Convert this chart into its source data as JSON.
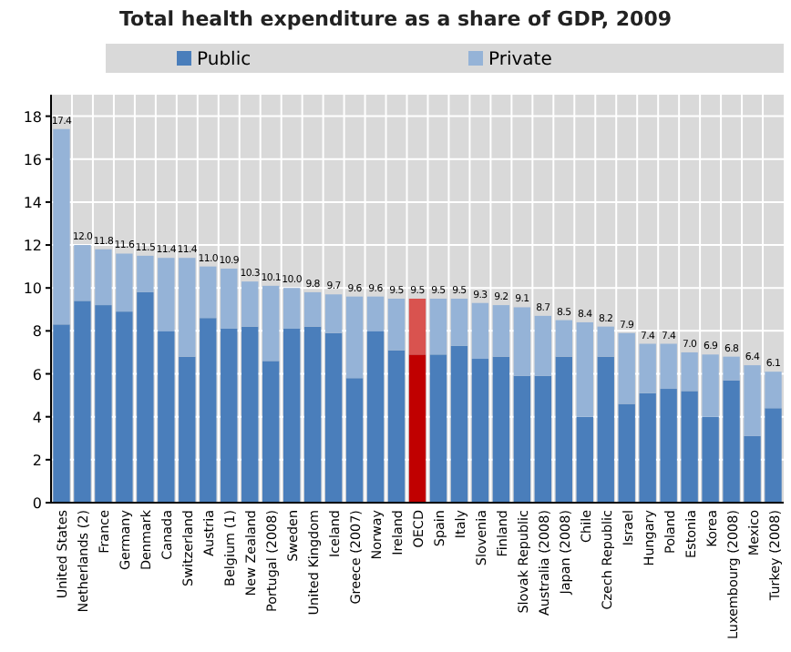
{
  "chart_data": {
    "type": "bar",
    "title": "Total health expenditure as a share of GDP, 2009",
    "categories": [
      "United States",
      "Netherlands (2)",
      "France",
      "Germany",
      "Denmark",
      "Canada",
      "Switzerland",
      "Austria",
      "Belgium (1)",
      "New Zealand",
      "Portugal (2008)",
      "Sweden",
      "United Kingdom",
      "Iceland",
      "Greece (2007)",
      "Norway",
      "Ireland",
      "OECD",
      "Spain",
      "Italy",
      "Slovenia",
      "Finland",
      "Slovak Republic",
      "Australia (2008)",
      "Japan (2008)",
      "Chile",
      "Czech Republic",
      "Israel",
      "Hungary",
      "Poland",
      "Estonia",
      "Korea",
      "Luxembourg (2008)",
      "Mexico",
      "Turkey (2008)"
    ],
    "stacked": true,
    "series": [
      {
        "name": "Public",
        "color": "#4a7ebb",
        "colors": [
          "#4a7ebb",
          "#4a7ebb",
          "#4a7ebb",
          "#4a7ebb",
          "#4a7ebb",
          "#4a7ebb",
          "#4a7ebb",
          "#4a7ebb",
          "#4a7ebb",
          "#4a7ebb",
          "#4a7ebb",
          "#4a7ebb",
          "#4a7ebb",
          "#4a7ebb",
          "#4a7ebb",
          "#4a7ebb",
          "#4a7ebb",
          "#c00000",
          "#4a7ebb",
          "#4a7ebb",
          "#4a7ebb",
          "#4a7ebb",
          "#4a7ebb",
          "#4a7ebb",
          "#4a7ebb",
          "#4a7ebb",
          "#4a7ebb",
          "#4a7ebb",
          "#4a7ebb",
          "#4a7ebb",
          "#4a7ebb",
          "#4a7ebb",
          "#4a7ebb",
          "#4a7ebb",
          "#4a7ebb"
        ],
        "values": [
          8.3,
          9.4,
          9.2,
          8.9,
          9.8,
          8.0,
          6.8,
          8.6,
          8.1,
          8.2,
          6.6,
          8.1,
          8.2,
          7.9,
          5.8,
          8.0,
          7.1,
          6.9,
          6.9,
          7.3,
          6.7,
          6.8,
          5.9,
          5.9,
          6.8,
          4.0,
          6.8,
          4.6,
          5.1,
          5.3,
          5.2,
          4.0,
          5.7,
          3.1,
          4.4
        ]
      },
      {
        "name": "Private",
        "color": "#95b3d7",
        "colors": [
          "#95b3d7",
          "#95b3d7",
          "#95b3d7",
          "#95b3d7",
          "#95b3d7",
          "#95b3d7",
          "#95b3d7",
          "#95b3d7",
          "#95b3d7",
          "#95b3d7",
          "#95b3d7",
          "#95b3d7",
          "#95b3d7",
          "#95b3d7",
          "#95b3d7",
          "#95b3d7",
          "#95b3d7",
          "#d9534f",
          "#95b3d7",
          "#95b3d7",
          "#95b3d7",
          "#95b3d7",
          "#95b3d7",
          "#95b3d7",
          "#95b3d7",
          "#95b3d7",
          "#95b3d7",
          "#95b3d7",
          "#95b3d7",
          "#95b3d7",
          "#95b3d7",
          "#95b3d7",
          "#95b3d7",
          "#95b3d7",
          "#95b3d7"
        ],
        "values": [
          9.1,
          2.6,
          2.6,
          2.7,
          1.7,
          3.4,
          4.6,
          2.4,
          2.8,
          2.1,
          3.5,
          1.9,
          1.6,
          1.8,
          3.8,
          1.6,
          2.4,
          2.6,
          2.6,
          2.2,
          2.6,
          2.4,
          3.2,
          2.8,
          1.7,
          4.4,
          1.4,
          3.3,
          2.3,
          2.1,
          1.8,
          2.9,
          1.1,
          3.3,
          1.7
        ]
      }
    ],
    "totals": [
      "17.4",
      "12.0",
      "11.8",
      "11.6",
      "11.5",
      "11.4",
      "11.4",
      "11.0",
      "10.9",
      "10.3",
      "10.1",
      "10.0",
      "9.8",
      "9.7",
      "9.6",
      "9.6",
      "9.5",
      "9.5",
      "9.5",
      "9.5",
      "9.3",
      "9.2",
      "9.1",
      "8.7",
      "8.5",
      "8.4",
      "8.2",
      "7.9",
      "7.4",
      "7.4",
      "7.0",
      "6.9",
      "6.8",
      "6.4",
      "6.1"
    ],
    "ylim": [
      0,
      19
    ],
    "yticks": [
      0,
      2,
      4,
      6,
      8,
      10,
      12,
      14,
      16,
      18
    ],
    "grid": true,
    "legend": "top"
  }
}
